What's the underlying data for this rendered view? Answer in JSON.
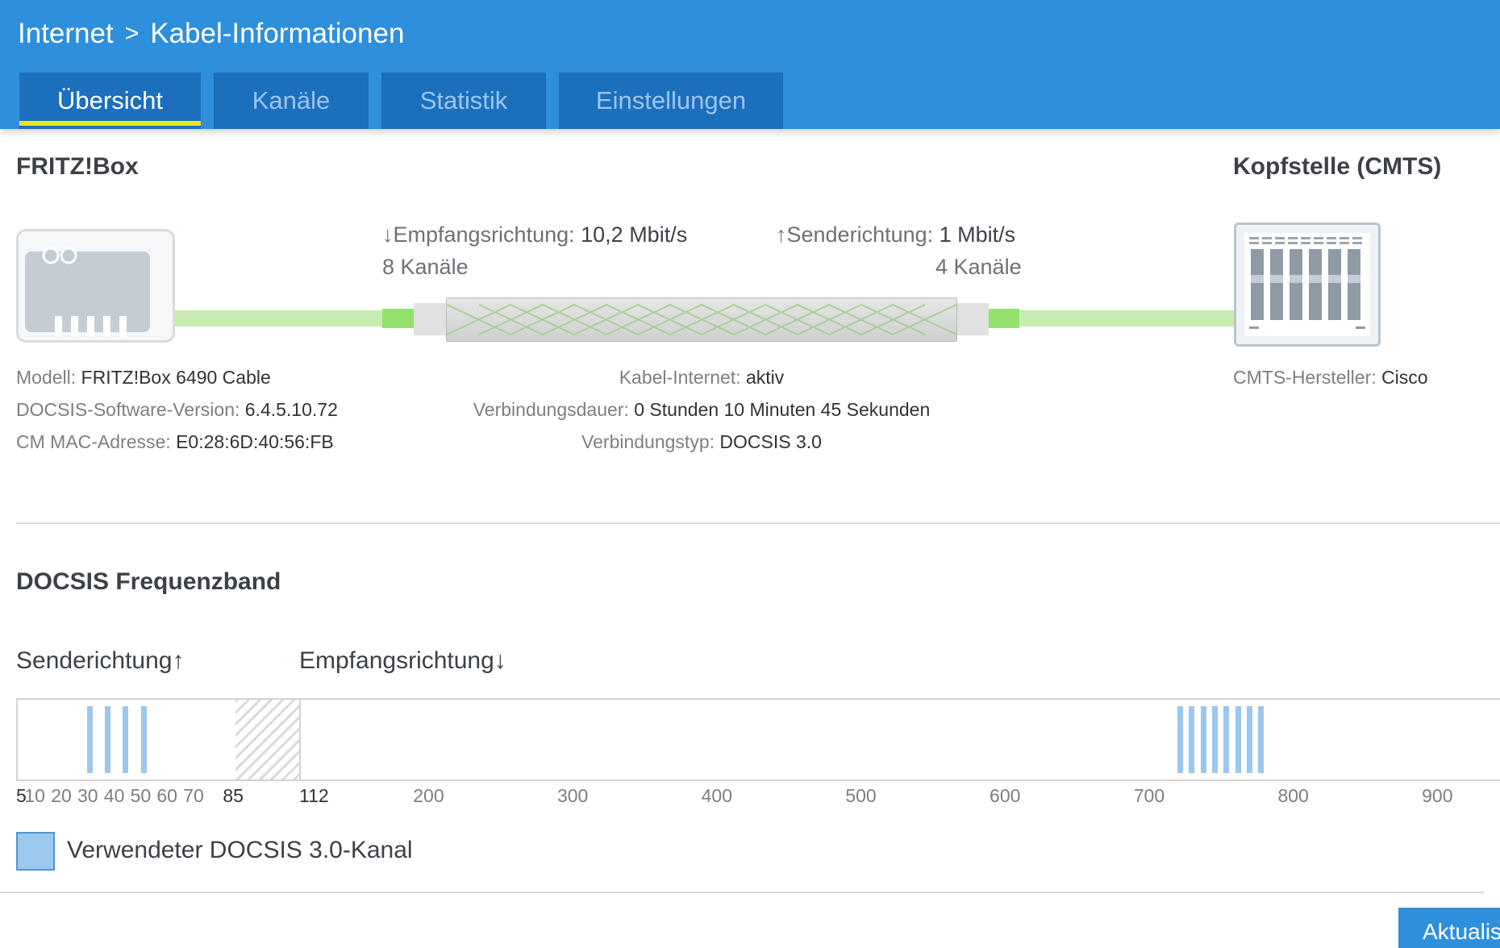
{
  "breadcrumb": {
    "parent": "Internet",
    "separator": ">",
    "current": "Kabel-Informationen"
  },
  "tabs": [
    {
      "label": "Übersicht",
      "active": true
    },
    {
      "label": "Kanäle",
      "active": false
    },
    {
      "label": "Statistik",
      "active": false
    },
    {
      "label": "Einstellungen",
      "active": false
    }
  ],
  "device": {
    "title": "FRITZ!Box"
  },
  "cmts": {
    "title": "Kopfstelle (CMTS)"
  },
  "downstream": {
    "arrow": "↓",
    "label": "Empfangsrichtung:",
    "rate": "10,2 Mbit/s",
    "channels": "8 Kanäle"
  },
  "upstream": {
    "arrow": "↑",
    "label": "Senderichtung:",
    "rate": "1 Mbit/s",
    "channels": "4 Kanäle"
  },
  "device_info": {
    "model_label": "Modell:",
    "model": "FRITZ!Box 6490 Cable",
    "docsis_sw_label": "DOCSIS-Software-Version:",
    "docsis_sw": "6.4.5.10.72",
    "mac_label": "CM MAC-Adresse:",
    "mac": "E0:28:6D:40:56:FB"
  },
  "connection_info": {
    "cable_label": "Kabel-Internet:",
    "cable": "aktiv",
    "duration_label": "Verbindungsdauer:",
    "duration": "0 Stunden 10 Minuten 45 Sekunden",
    "type_label": "Verbindungstyp:",
    "type": "DOCSIS 3.0"
  },
  "cmts_info": {
    "manufacturer_label": "CMTS-Hersteller:",
    "manufacturer": "Cisco"
  },
  "band": {
    "title": "DOCSIS Frequenzband",
    "upstream_label": "Senderichtung↑",
    "downstream_label": "Empfangsrichtung↓",
    "upstream_ticks": [
      "5",
      "10",
      "20",
      "30",
      "40",
      "50",
      "60",
      "70",
      "85"
    ],
    "downstream_ticks": [
      "112",
      "200",
      "300",
      "400",
      "500",
      "600",
      "700",
      "800",
      "900"
    ],
    "upstream_channels_mhz": [
      30.8,
      37.6,
      44.4,
      51.2
    ],
    "downstream_channels_mhz": [
      722,
      730,
      738,
      746,
      754,
      762,
      770,
      778
    ],
    "legend": "Verwendeter DOCSIS 3.0-Kanal"
  },
  "refresh_button": {
    "label": "Aktualisieren"
  },
  "colors": {
    "header": "#2e8fdc",
    "tab": "#1c6fbc",
    "active_tab_underline": "#e6e61a",
    "channel": "#9bc8ec",
    "cable": "#c6ecb2"
  }
}
